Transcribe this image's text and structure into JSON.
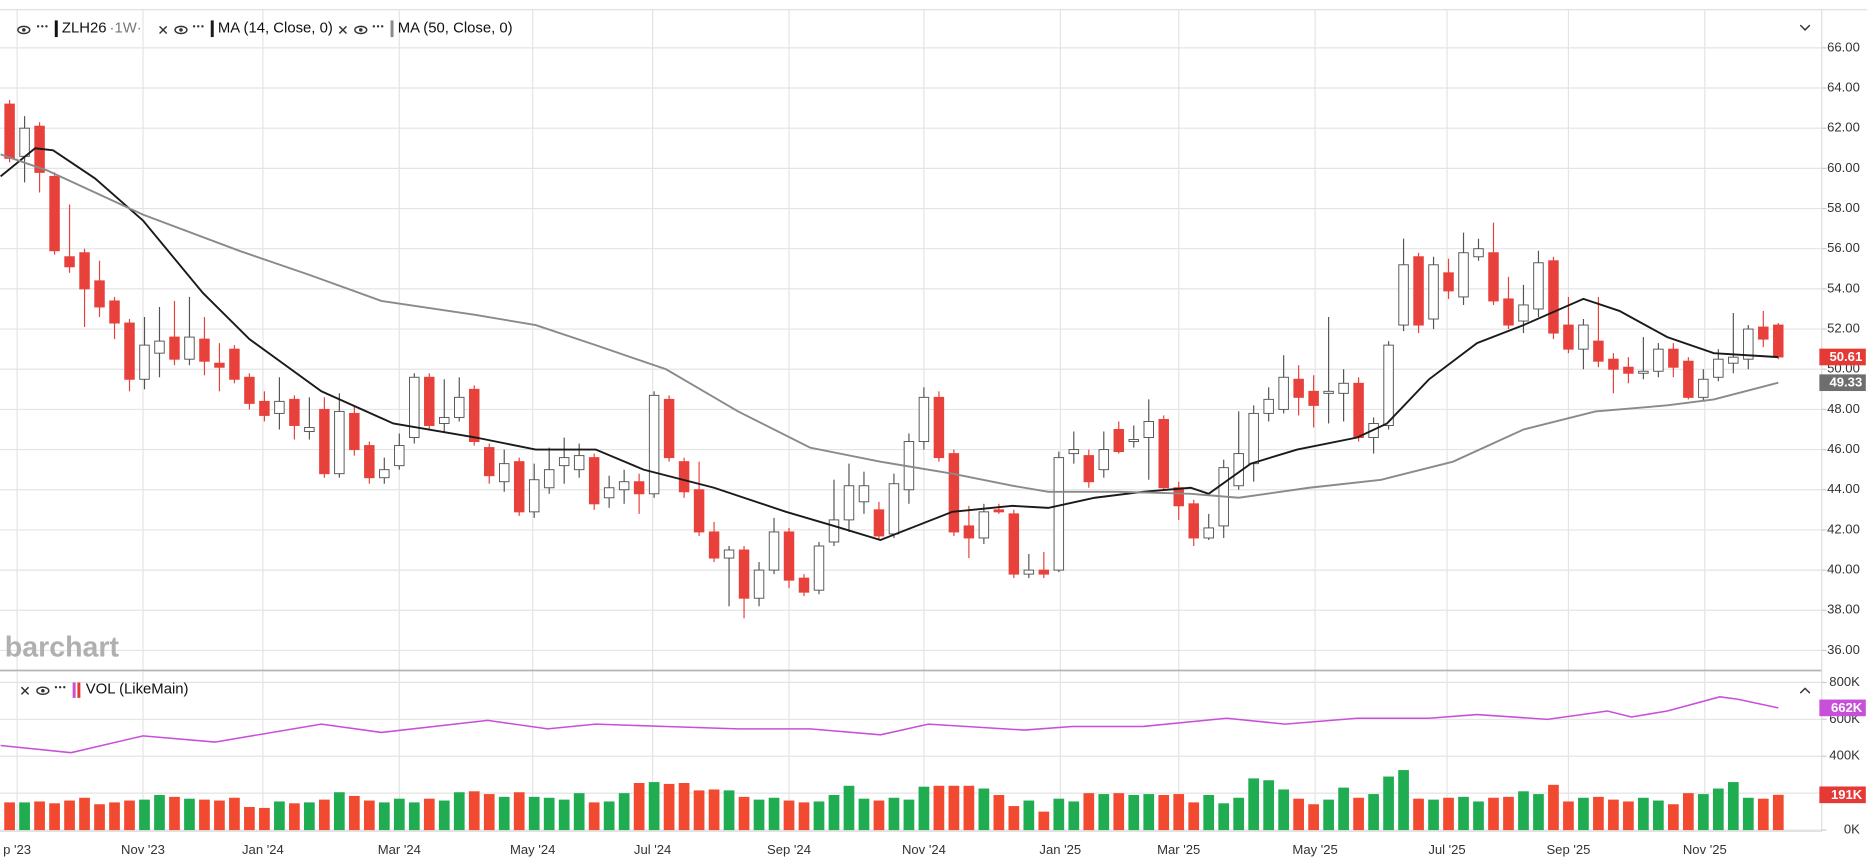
{
  "chart_data": [
    {
      "type": "candlestick",
      "symbol": "ZLH26",
      "interval": "·1W·",
      "open": [
        63.2,
        60.6,
        62.1,
        59.6,
        55.6,
        55.8,
        54.4,
        53.4,
        52.3,
        49.5,
        50.8,
        51.6,
        50.5,
        51.5,
        50.3,
        51.0,
        49.6,
        48.4,
        47.8,
        48.5,
        46.9,
        48.0,
        44.8,
        47.8,
        46.2,
        44.6,
        45.2,
        46.6,
        49.6,
        47.3,
        47.6,
        49.0,
        46.1,
        44.4,
        45.4,
        42.9,
        44.1,
        45.2,
        45.0,
        45.6,
        43.6,
        44.0,
        44.4,
        43.8,
        48.5,
        45.4,
        44.0,
        41.9,
        40.6,
        41.0,
        38.6,
        40.0,
        41.9,
        39.6,
        39.0,
        41.4,
        42.5,
        43.4,
        43.0,
        41.8,
        44.0,
        46.4,
        48.6,
        45.8,
        42.2,
        41.6,
        43.0,
        42.8,
        39.8,
        40.0,
        40.0,
        45.8,
        45.7,
        45.0,
        47.0,
        46.4,
        46.6,
        47.5,
        44.1,
        43.3,
        41.6,
        42.2,
        44.2,
        45.3,
        47.8,
        48.0,
        49.5,
        48.9,
        48.8,
        48.8,
        49.3,
        46.6,
        47.2,
        52.2,
        55.6,
        52.5,
        54.8,
        53.6,
        55.6,
        55.8,
        53.5,
        52.4,
        53.0,
        55.4,
        52.2,
        51.0,
        51.4,
        50.5,
        50.1,
        49.8,
        49.9,
        51.0,
        50.4,
        48.6,
        49.6,
        50.3,
        50.5,
        52.1,
        52.2
      ],
      "high": [
        63.4,
        62.6,
        62.3,
        59.8,
        58.2,
        56.0,
        55.4,
        53.6,
        52.5,
        52.6,
        53.1,
        53.4,
        53.6,
        52.6,
        51.3,
        51.2,
        49.8,
        48.9,
        49.6,
        48.7,
        48.6,
        48.6,
        48.8,
        48.2,
        46.4,
        45.6,
        46.8,
        49.8,
        49.8,
        49.5,
        49.6,
        49.2,
        46.3,
        46.0,
        45.6,
        45.3,
        46.1,
        46.6,
        46.3,
        45.8,
        44.7,
        45.0,
        44.8,
        48.9,
        48.7,
        45.6,
        45.4,
        42.4,
        41.2,
        41.2,
        40.4,
        42.6,
        42.1,
        39.8,
        41.4,
        44.5,
        45.3,
        44.9,
        43.4,
        44.8,
        46.8,
        49.1,
        48.9,
        46.0,
        43.2,
        43.3,
        43.3,
        43.0,
        40.8,
        40.9,
        45.9,
        46.9,
        46.0,
        46.9,
        47.4,
        47.2,
        48.5,
        47.7,
        44.4,
        43.5,
        42.8,
        45.5,
        47.9,
        48.2,
        49.1,
        50.7,
        50.2,
        49.7,
        52.6,
        50.0,
        49.6,
        47.6,
        51.4,
        56.5,
        55.8,
        55.6,
        55.5,
        56.8,
        56.5,
        57.3,
        54.6,
        54.2,
        55.9,
        55.6,
        53.6,
        52.5,
        53.6,
        50.8,
        50.6,
        51.6,
        51.3,
        51.3,
        50.6,
        50.0,
        51.0,
        52.8,
        52.2,
        52.9,
        52.3
      ],
      "low": [
        60.3,
        59.3,
        58.8,
        55.7,
        54.8,
        52.1,
        52.6,
        51.5,
        48.9,
        49.0,
        49.6,
        50.2,
        50.2,
        49.7,
        48.9,
        49.3,
        48.0,
        47.4,
        47.0,
        46.5,
        46.5,
        44.6,
        44.6,
        45.7,
        44.3,
        44.3,
        45.0,
        46.3,
        47.0,
        46.9,
        47.4,
        46.2,
        44.3,
        43.9,
        42.7,
        42.6,
        43.8,
        44.3,
        44.6,
        43.0,
        43.1,
        43.3,
        42.8,
        43.6,
        45.4,
        43.6,
        41.7,
        40.4,
        38.2,
        37.6,
        38.2,
        39.8,
        39.1,
        38.7,
        38.8,
        41.2,
        41.9,
        42.8,
        41.5,
        41.6,
        43.3,
        46.0,
        45.4,
        41.7,
        40.6,
        41.3,
        42.8,
        39.6,
        39.6,
        39.6,
        39.9,
        45.3,
        44.1,
        44.6,
        45.8,
        46.1,
        44.5,
        44.0,
        42.5,
        41.2,
        41.5,
        41.6,
        44.0,
        44.4,
        47.4,
        47.8,
        47.7,
        47.1,
        47.3,
        47.4,
        46.4,
        45.8,
        47.0,
        51.9,
        51.8,
        52.0,
        53.5,
        53.2,
        55.4,
        53.2,
        52.0,
        51.8,
        52.6,
        51.5,
        50.8,
        50.0,
        50.1,
        48.8,
        49.3,
        49.5,
        49.6,
        49.6,
        48.5,
        48.4,
        49.4,
        49.8,
        50.0,
        51.1,
        50.5
      ],
      "close": [
        60.5,
        62.0,
        59.8,
        55.9,
        55.1,
        54.0,
        53.1,
        52.3,
        49.5,
        51.2,
        51.4,
        50.5,
        51.6,
        50.4,
        50.1,
        49.5,
        48.3,
        47.7,
        48.4,
        47.2,
        47.1,
        44.8,
        47.9,
        46.0,
        44.6,
        45.0,
        46.2,
        49.6,
        47.2,
        47.6,
        48.6,
        46.4,
        44.7,
        45.3,
        42.9,
        44.5,
        45.0,
        45.6,
        45.7,
        43.3,
        44.1,
        44.4,
        43.8,
        48.7,
        45.6,
        43.9,
        41.9,
        40.6,
        41.0,
        38.6,
        40.0,
        41.9,
        39.5,
        38.9,
        41.2,
        42.5,
        44.2,
        44.2,
        41.7,
        44.3,
        46.4,
        48.6,
        45.6,
        41.9,
        41.6,
        42.9,
        42.9,
        39.8,
        40.0,
        39.8,
        45.6,
        46.0,
        44.4,
        46.0,
        45.9,
        46.5,
        47.4,
        44.1,
        43.2,
        41.6,
        42.1,
        45.1,
        45.8,
        47.8,
        48.5,
        49.6,
        48.6,
        48.2,
        48.9,
        49.3,
        46.6,
        47.3,
        51.2,
        55.2,
        52.2,
        55.2,
        53.9,
        55.8,
        56.0,
        53.4,
        52.2,
        53.2,
        55.3,
        51.8,
        51.0,
        52.2,
        50.4,
        50.0,
        49.8,
        49.9,
        51.0,
        50.1,
        48.6,
        49.5,
        50.5,
        50.6,
        52.0,
        51.5,
        50.61
      ],
      "up_color": "#ffffff",
      "down_color": "#e8403b",
      "series": [
        {
          "name": "MA (14, Close, 0)",
          "color": "#1a1a1a",
          "x": [
            -0.6,
            1.7,
            2.9,
            5.7,
            8.9,
            12.9,
            16.0,
            20.8,
            25.6,
            31.1,
            35.1,
            39.1,
            42.3,
            47.0,
            51.8,
            55.0,
            58.1,
            62.9,
            66.9,
            69.3,
            72.4,
            75.6,
            78.8,
            80.0,
            82.8,
            85.9,
            89.9,
            91.9,
            94.7,
            97.9,
            101.0,
            105.0,
            107.4,
            110.6,
            113.7,
            118.0
          ],
          "values": [
            59.6,
            61.0,
            60.9,
            59.5,
            57.4,
            53.8,
            51.5,
            48.9,
            47.3,
            46.6,
            46.0,
            46.0,
            45.0,
            44.1,
            42.9,
            42.2,
            41.5,
            42.9,
            43.2,
            43.1,
            43.6,
            43.9,
            44.1,
            43.8,
            45.3,
            46.0,
            46.6,
            47.3,
            49.5,
            51.3,
            52.2,
            53.5,
            52.9,
            51.6,
            50.8,
            50.6
          ]
        },
        {
          "name": "MA (50, Close, 0)",
          "color": "#8a8a8a",
          "x": [
            -0.6,
            2.5,
            8.9,
            15.3,
            20.0,
            24.8,
            31.1,
            35.1,
            39.1,
            43.8,
            48.6,
            53.4,
            58.1,
            62.9,
            66.9,
            69.3,
            74.0,
            78.8,
            82.0,
            86.7,
            91.5,
            96.3,
            101.0,
            105.8,
            110.6,
            113.7,
            118.0
          ],
          "values": [
            60.7,
            59.9,
            57.7,
            55.9,
            54.7,
            53.4,
            52.7,
            52.2,
            51.2,
            50.0,
            47.9,
            46.1,
            45.4,
            44.8,
            44.2,
            43.9,
            43.9,
            43.8,
            43.6,
            44.1,
            44.5,
            45.4,
            47.0,
            47.9,
            48.2,
            48.5,
            49.33
          ]
        }
      ],
      "xlim": [
        -0.64,
        120.9
      ],
      "xticks": [
        {
          "value": 0.5,
          "label": "p '23"
        },
        {
          "value": 8.9,
          "label": "Nov '23"
        },
        {
          "value": 16.9,
          "label": "Jan '24"
        },
        {
          "value": 26.0,
          "label": "Mar '24"
        },
        {
          "value": 34.9,
          "label": "May '24"
        },
        {
          "value": 42.9,
          "label": "Jul '24"
        },
        {
          "value": 52.0,
          "label": "Sep '24"
        },
        {
          "value": 61.0,
          "label": "Nov '24"
        },
        {
          "value": 70.1,
          "label": "Jan '25"
        },
        {
          "value": 78.0,
          "label": "Mar '25"
        },
        {
          "value": 87.1,
          "label": "May '25"
        },
        {
          "value": 95.9,
          "label": "Jul '25"
        },
        {
          "value": 104.0,
          "label": "Sep '25"
        },
        {
          "value": 113.1,
          "label": "Nov '25"
        }
      ],
      "ylim": [
        35.06,
        67.9
      ],
      "yticks": [
        {
          "value": 36,
          "label": "36.00"
        },
        {
          "value": 38,
          "label": "38.00"
        },
        {
          "value": 40,
          "label": "40.00"
        },
        {
          "value": 42,
          "label": "42.00"
        },
        {
          "value": 44,
          "label": "44.00"
        },
        {
          "value": 46,
          "label": "46.00"
        },
        {
          "value": 48,
          "label": "48.00"
        },
        {
          "value": 50,
          "label": "50.00"
        },
        {
          "value": 52,
          "label": "52.00"
        },
        {
          "value": 54,
          "label": "54.00"
        },
        {
          "value": 56,
          "label": "56.00"
        },
        {
          "value": 58,
          "label": "58.00"
        },
        {
          "value": 60,
          "label": "60.00"
        },
        {
          "value": 62,
          "label": "62.00"
        },
        {
          "value": 64,
          "label": "64.00"
        },
        {
          "value": 66,
          "label": "66.00"
        }
      ],
      "last_labels": [
        {
          "value": 50.61,
          "color": "#e53935"
        },
        {
          "value": 49.33,
          "color": "#6e6e6e"
        }
      ],
      "watermark": "barchart",
      "grid": true
    },
    {
      "type": "volume",
      "title": "VOL (LikeMain)",
      "values": [
        150,
        150,
        155,
        145,
        160,
        175,
        140,
        150,
        160,
        165,
        190,
        180,
        170,
        165,
        160,
        175,
        125,
        120,
        155,
        145,
        150,
        165,
        205,
        185,
        160,
        150,
        170,
        150,
        170,
        160,
        205,
        210,
        195,
        180,
        205,
        180,
        175,
        165,
        200,
        150,
        155,
        200,
        255,
        260,
        250,
        255,
        215,
        220,
        215,
        180,
        165,
        175,
        160,
        150,
        155,
        190,
        240,
        170,
        160,
        175,
        165,
        235,
        240,
        240,
        240,
        225,
        190,
        130,
        160,
        100,
        170,
        155,
        200,
        195,
        200,
        190,
        195,
        190,
        195,
        150,
        190,
        145,
        175,
        280,
        270,
        220,
        170,
        140,
        165,
        230,
        175,
        195,
        290,
        325,
        170,
        165,
        175,
        180,
        155,
        175,
        180,
        210,
        195,
        245,
        155,
        175,
        180,
        165,
        155,
        175,
        160,
        140,
        200,
        195,
        225,
        260,
        175,
        170,
        191
      ],
      "up_color": "#20ad52",
      "down_color": "#f24a30",
      "series": [
        {
          "color": "#c850d8",
          "x": [
            -0.6,
            4.1,
            8.9,
            13.7,
            20.8,
            24.8,
            31.9,
            35.9,
            39.1,
            43.8,
            48.6,
            53.4,
            58.1,
            61.3,
            67.7,
            70.9,
            75.6,
            81.2,
            85.1,
            89.9,
            94.7,
            97.9,
            102.6,
            106.6,
            108.2,
            110.6,
            114.1,
            115.3,
            118.0
          ],
          "values": [
            458,
            419,
            510,
            477,
            574,
            529,
            594,
            548,
            574,
            561,
            548,
            548,
            516,
            574,
            542,
            561,
            561,
            606,
            574,
            606,
            606,
            626,
            600,
            645,
            613,
            645,
            722,
            709,
            662
          ]
        }
      ],
      "ylim": [
        0,
        845
      ],
      "yticks": [
        {
          "value": 0,
          "label": "0K"
        },
        {
          "value": 200,
          "label": "200K"
        },
        {
          "value": 400,
          "label": "400K"
        },
        {
          "value": 600,
          "label": "600K"
        },
        {
          "value": 800,
          "label": "800K"
        }
      ],
      "last_labels": [
        {
          "value": 662,
          "label": "662K",
          "color": "#c850d8"
        },
        {
          "value": 191,
          "label": "191K",
          "color": "#e53935"
        }
      ]
    }
  ]
}
